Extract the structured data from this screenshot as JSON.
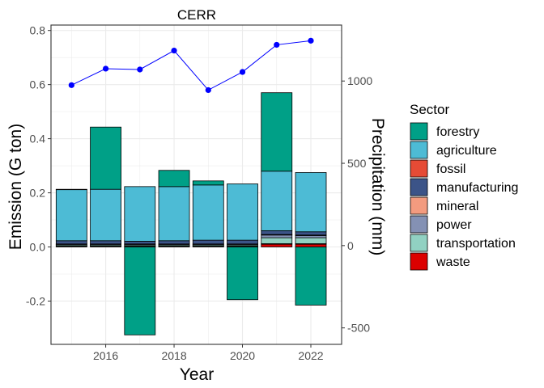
{
  "chart_data": {
    "type": "bar",
    "title": "CERR",
    "xlabel": "Year",
    "ylabel": "Emission (G ton)",
    "y2label": "Precipitation (mm)",
    "x_ticks": [
      "2016",
      "2018",
      "2020",
      "2022"
    ],
    "x_tick_values": [
      2016,
      2018,
      2020,
      2022
    ],
    "y_ticks": [
      "-0.2",
      "0.0",
      "0.2",
      "0.4",
      "0.6",
      "0.8"
    ],
    "y_tick_values": [
      -0.2,
      0.0,
      0.2,
      0.4,
      0.6,
      0.8
    ],
    "y2_ticks": [
      "-500",
      "0",
      "500",
      "1000"
    ],
    "y2_tick_values": [
      -500,
      0,
      500,
      1000
    ],
    "xlim": [
      2014.4,
      2022.9
    ],
    "ylim": [
      -0.36,
      0.82
    ],
    "y2lim": [
      -600,
      1340
    ],
    "grid": true,
    "legend": {
      "title": "Sector",
      "position": "right",
      "items": [
        "forestry",
        "agriculture",
        "fossil",
        "manufacturing",
        "mineral",
        "power",
        "transportation",
        "waste"
      ]
    },
    "colors": {
      "forestry": "#00A087",
      "agriculture": "#4DBBD5",
      "fossil": "#E64B35",
      "manufacturing": "#3C5488",
      "mineral": "#F39B7F",
      "power": "#8491B4",
      "transportation": "#91D1C2",
      "waste": "#DC0000",
      "line": "#0000FF"
    },
    "years": [
      2015,
      2016,
      2017,
      2018,
      2019,
      2020,
      2021,
      2022
    ],
    "series": [
      {
        "name": "waste",
        "values": [
          0.002,
          0.002,
          0.002,
          0.002,
          0.002,
          0.002,
          0.01,
          0.01
        ]
      },
      {
        "name": "fossil",
        "values": [
          0.001,
          0.001,
          0.001,
          0.001,
          0.001,
          0.001,
          0.002,
          0.002
        ]
      },
      {
        "name": "transportation",
        "values": [
          0.004,
          0.004,
          0.004,
          0.004,
          0.004,
          0.004,
          0.022,
          0.022
        ]
      },
      {
        "name": "power",
        "values": [
          0.003,
          0.003,
          0.003,
          0.003,
          0.003,
          0.003,
          0.01,
          0.008
        ]
      },
      {
        "name": "mineral",
        "values": [
          0.001,
          0.001,
          0.001,
          0.001,
          0.001,
          0.001,
          0.002,
          0.002
        ]
      },
      {
        "name": "manufacturing",
        "values": [
          0.012,
          0.012,
          0.01,
          0.012,
          0.014,
          0.014,
          0.014,
          0.012
        ]
      },
      {
        "name": "agriculture",
        "values": [
          0.189,
          0.19,
          0.202,
          0.2,
          0.204,
          0.208,
          0.22,
          0.219
        ]
      },
      {
        "name": "forestry",
        "values": [
          0.001,
          0.23,
          -0.325,
          0.06,
          0.015,
          -0.195,
          0.29,
          -0.215
        ]
      }
    ],
    "line_series": {
      "name": "Precipitation",
      "x": [
        2015,
        2016,
        2017,
        2018,
        2019,
        2020,
        2021,
        2022
      ],
      "values": [
        975,
        1075,
        1070,
        1185,
        945,
        1055,
        1220,
        1245
      ]
    }
  }
}
